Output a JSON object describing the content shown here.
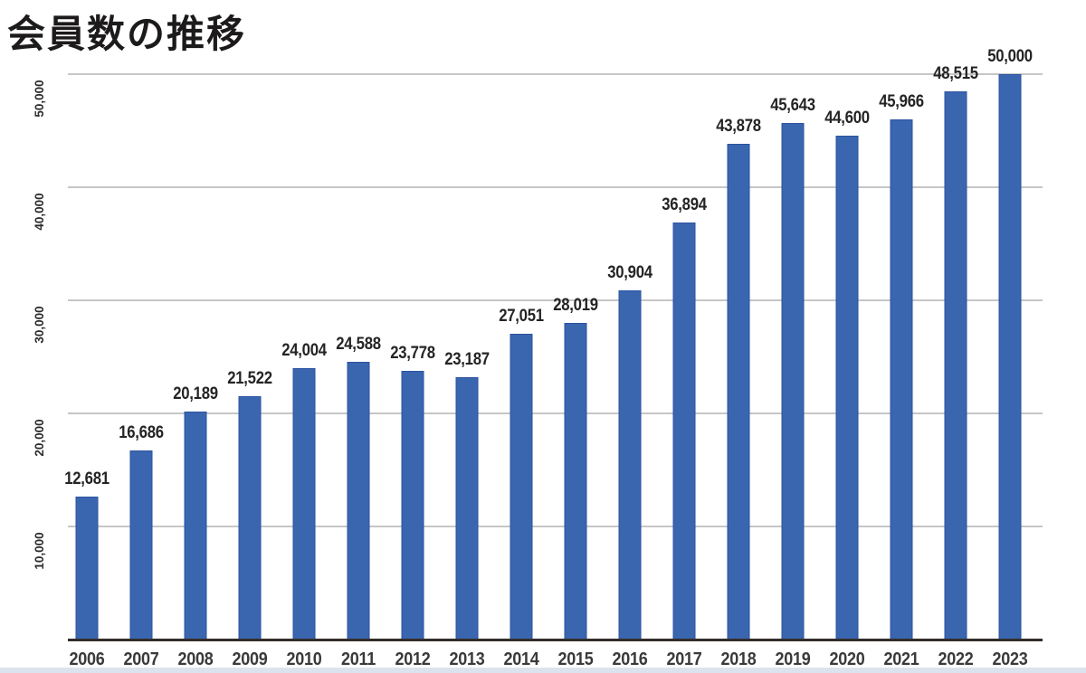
{
  "title": "会員数の推移",
  "chart_data": {
    "type": "bar",
    "title": "会員数の推移",
    "categories": [
      "2006",
      "2007",
      "2008",
      "2009",
      "2010",
      "2011",
      "2012",
      "2013",
      "2014",
      "2015",
      "2016",
      "2017",
      "2018",
      "2019",
      "2020",
      "2021",
      "2022",
      "2023"
    ],
    "values": [
      12681,
      16686,
      20189,
      21522,
      24004,
      24588,
      23778,
      23187,
      27051,
      28019,
      30904,
      36894,
      43878,
      45643,
      44600,
      45966,
      48515,
      50000
    ],
    "value_labels": [
      "12,681",
      "16,686",
      "20,189",
      "21,522",
      "24,004",
      "24,588",
      "23,778",
      "23,187",
      "27,051",
      "28,019",
      "30,904",
      "36,894",
      "43,878",
      "45,643",
      "44,600",
      "45,966",
      "48,515",
      "50,000"
    ],
    "yticks": [
      10000,
      20000,
      30000,
      40000,
      50000
    ],
    "ytick_labels": [
      "10,000",
      "20,000",
      "30,000",
      "40,000",
      "50,000"
    ],
    "ylim": [
      0,
      50000
    ],
    "xlabel": "",
    "ylabel": "",
    "grid": "horizontal",
    "legend": "none",
    "bar_color": "#3a66b0",
    "bar_border_color": "#2b529f",
    "gridline_color": "#c6c6c6",
    "baseline_color": "#332e2b",
    "label_color": "#242424",
    "bottom_strip_color": "#dbe3ee"
  }
}
